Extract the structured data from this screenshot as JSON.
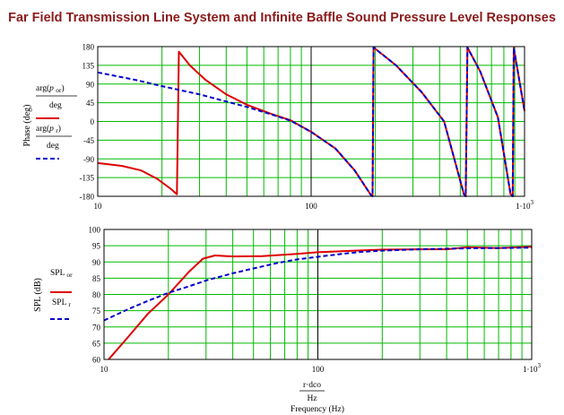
{
  "title": "Far Field Transmission Line System and Infinite Baffle Sound Pressure Level Responses",
  "colors": {
    "tl": "#dd0000",
    "ib": "#0000cc",
    "grid": "#00bb00",
    "frame": "#000000"
  },
  "chart_data": [
    {
      "type": "line",
      "name": "phase",
      "xscale": "log",
      "xlim": [
        10,
        1000
      ],
      "ylim": [
        -180,
        180
      ],
      "x_ticks": [
        "10",
        "100",
        "1·10³"
      ],
      "y_ticks": [
        "180",
        "135",
        "90",
        "45",
        "0",
        "-45",
        "-90",
        "-135",
        "-180"
      ],
      "ylabel": "Phase (deg)",
      "legend": [
        "arg(p_or)/deg",
        "arg(p_r)/deg"
      ],
      "series": [
        {
          "name": "arg(p_or)/deg",
          "style": "solid",
          "x": [
            10,
            13,
            16,
            19,
            22,
            23.5,
            24,
            27,
            32,
            40,
            50,
            65,
            80,
            100,
            130,
            160,
            190,
            194,
            196,
            250,
            330,
            420,
            520,
            530,
            540,
            620,
            750,
            860,
            880,
            890,
            1000
          ],
          "y": [
            -100,
            -107,
            -118,
            -138,
            -162,
            -175,
            168,
            135,
            100,
            65,
            40,
            18,
            3,
            -25,
            -65,
            -118,
            -176,
            -180,
            178,
            135,
            70,
            0,
            -175,
            -180,
            178,
            120,
            10,
            -175,
            -180,
            177,
            25
          ]
        },
        {
          "name": "arg(p_r)/deg",
          "style": "dashed",
          "x": [
            10,
            15,
            20,
            30,
            40,
            50,
            65,
            80,
            100,
            130,
            160,
            190,
            194,
            196,
            250,
            330,
            420,
            520,
            530,
            540,
            620,
            750,
            860,
            880,
            890,
            1000
          ],
          "y": [
            118,
            100,
            85,
            65,
            48,
            35,
            17,
            2,
            -25,
            -65,
            -118,
            -176,
            -180,
            178,
            135,
            70,
            0,
            -175,
            -180,
            178,
            120,
            10,
            -175,
            -180,
            177,
            25
          ]
        }
      ]
    },
    {
      "type": "line",
      "name": "spl",
      "xscale": "log",
      "xlim": [
        10,
        1000
      ],
      "ylim": [
        60,
        100
      ],
      "x_ticks": [
        "10",
        "100",
        "1·10³"
      ],
      "y_ticks": [
        "100",
        "95",
        "90",
        "85",
        "80",
        "75",
        "70",
        "65",
        "60"
      ],
      "ylabel": "SPL (dB)",
      "xlabel": "r·dco / Hz",
      "xlabel2": "Frequency (Hz)",
      "legend": [
        "SPL_or",
        "SPL_r"
      ],
      "series": [
        {
          "name": "SPL_or",
          "style": "solid",
          "x": [
            10.5,
            13,
            16,
            20,
            25,
            29,
            33,
            40,
            55,
            80,
            100,
            150,
            200,
            300,
            400,
            500,
            700,
            1000
          ],
          "y": [
            60,
            67,
            74,
            80,
            87,
            91,
            92,
            91.7,
            91.8,
            92.5,
            93,
            93.5,
            93.8,
            93.9,
            93.9,
            94.5,
            94.3,
            94.7
          ]
        },
        {
          "name": "SPL_r",
          "style": "dashed",
          "x": [
            10,
            13,
            16,
            20,
            25,
            30,
            40,
            50,
            65,
            80,
            100,
            130,
            160,
            200,
            300,
            500,
            700,
            1000
          ],
          "y": [
            72,
            75.5,
            78,
            80.5,
            82.5,
            84.3,
            86.5,
            88,
            89.7,
            90.8,
            91.6,
            92.5,
            93.1,
            93.5,
            93.9,
            94.2,
            94.3,
            94.4
          ]
        }
      ]
    }
  ]
}
